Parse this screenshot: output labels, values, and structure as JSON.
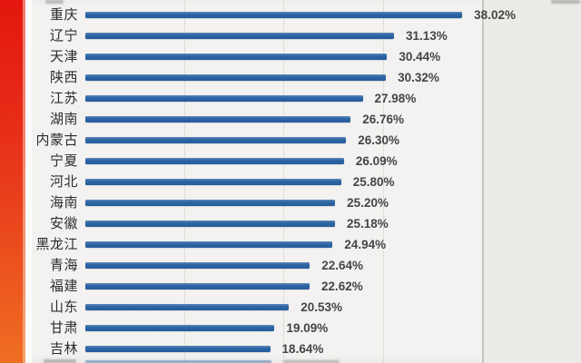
{
  "chart_data": {
    "type": "bar",
    "orientation": "horizontal",
    "title": "",
    "categories": [
      "重庆",
      "辽宁",
      "天津",
      "陕西",
      "江苏",
      "湖南",
      "内蒙古",
      "宁夏",
      "河北",
      "海南",
      "安徽",
      "黑龙江",
      "青海",
      "福建",
      "山东",
      "甘肃",
      "吉林"
    ],
    "values": [
      38.02,
      31.13,
      30.44,
      30.32,
      27.98,
      26.76,
      26.3,
      26.09,
      25.8,
      25.2,
      25.18,
      24.94,
      22.64,
      22.62,
      20.53,
      19.09,
      18.64
    ],
    "value_labels": [
      "38.02%",
      "31.13%",
      "30.44%",
      "30.32%",
      "27.98%",
      "26.76%",
      "26.30%",
      "26.09%",
      "25.80%",
      "25.20%",
      "25.18%",
      "24.94%",
      "22.64%",
      "22.62%",
      "20.53%",
      "19.09%",
      "18.64%"
    ],
    "unit": "%",
    "sort": "descending",
    "xlim": [
      0,
      45
    ],
    "gridlines_percent": [
      10,
      20,
      30,
      40
    ],
    "grid": true,
    "legend": false,
    "clipped_partial_rows": {
      "top": "one row above 重庆 is cut off at the top edge; only unreadable text fragments visible",
      "bottom": "one row below 吉林 is cut off at the bottom edge; top sliver of its bar (≈18%) and unreadable text fragments visible"
    }
  },
  "colors": {
    "bar": "#2d64a4",
    "background": "#f3f2f0",
    "right_zone_background": "#edebe8",
    "accent_strip_top": "#e3170d",
    "accent_strip_bottom": "#ef6e22",
    "label_text": "#2d2d2d",
    "value_text": "#454545",
    "gridline": "#b9b6b0"
  }
}
